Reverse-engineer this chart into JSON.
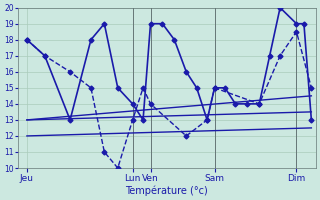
{
  "xlabel": "Température (°c)",
  "bg_color": "#cce8e0",
  "grid_color": "#aaccbb",
  "line_color": "#1a1aaa",
  "ylim": [
    10,
    20
  ],
  "yticks": [
    10,
    11,
    12,
    13,
    14,
    15,
    16,
    17,
    18,
    19,
    20
  ],
  "xlim": [
    0,
    1
  ],
  "day_labels": [
    "Jeu",
    "Lun",
    "Ven",
    "Sam",
    "Dim"
  ],
  "day_positions": [
    0.03,
    0.385,
    0.445,
    0.66,
    0.935
  ],
  "vline_positions": [
    0.385,
    0.445,
    0.66,
    0.935
  ],
  "line1_x": [
    0.03,
    0.09,
    0.175,
    0.245,
    0.29,
    0.335,
    0.385,
    0.42,
    0.445,
    0.485,
    0.525,
    0.565,
    0.6,
    0.635,
    0.66,
    0.695,
    0.73,
    0.77,
    0.81,
    0.845,
    0.88,
    0.935,
    0.96,
    0.985
  ],
  "line1_y": [
    18,
    17,
    13,
    18,
    19,
    15,
    14,
    13,
    19,
    19,
    18,
    16,
    15,
    13,
    15,
    15,
    14,
    14,
    14,
    17,
    20,
    19,
    19,
    13
  ],
  "line2_x": [
    0.03,
    0.09,
    0.175,
    0.245,
    0.29,
    0.335,
    0.385,
    0.42,
    0.445,
    0.565,
    0.635,
    0.66,
    0.81,
    0.88,
    0.935,
    0.985
  ],
  "line2_y": [
    18,
    17,
    16,
    15,
    11,
    10,
    13,
    15,
    14,
    12,
    13,
    15,
    14,
    17,
    18.5,
    15
  ],
  "line3_x": [
    0.03,
    0.985
  ],
  "line3_y": [
    13,
    13.5
  ],
  "line4_x": [
    0.03,
    0.985
  ],
  "line4_y": [
    13,
    14.5
  ],
  "line5_x": [
    0.03,
    0.985
  ],
  "line5_y": [
    12,
    12.5
  ]
}
